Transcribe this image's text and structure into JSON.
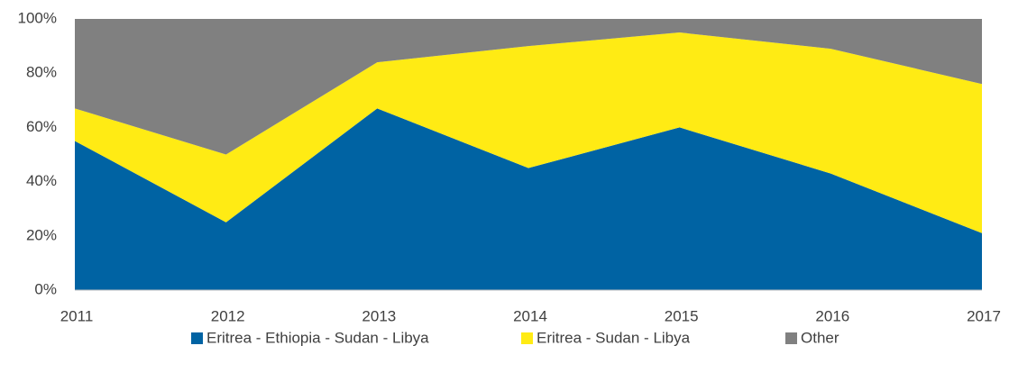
{
  "chart_data": {
    "type": "area",
    "stacked": true,
    "categories": [
      "2011",
      "2012",
      "2013",
      "2014",
      "2015",
      "2016",
      "2017"
    ],
    "series": [
      {
        "name": "Eritrea - Ethiopia - Sudan - Libya",
        "color": "#0063a3",
        "values": [
          55,
          25,
          67,
          45,
          60,
          43,
          21
        ]
      },
      {
        "name": "Eritrea - Sudan - Libya",
        "color": "#ffeb14",
        "values": [
          12,
          25,
          17,
          45,
          35,
          46,
          55
        ]
      },
      {
        "name": "Other",
        "color": "#808080",
        "values": [
          33,
          50,
          16,
          10,
          5,
          11,
          24
        ]
      }
    ],
    "ylim": [
      0,
      100
    ],
    "yticks": [
      {
        "value": 0,
        "label": "0%"
      },
      {
        "value": 20,
        "label": "20%"
      },
      {
        "value": 40,
        "label": "40%"
      },
      {
        "value": 60,
        "label": "60%"
      },
      {
        "value": 80,
        "label": "80%"
      },
      {
        "value": 100,
        "label": "100%"
      }
    ],
    "grid": false,
    "legend": "bottom"
  }
}
